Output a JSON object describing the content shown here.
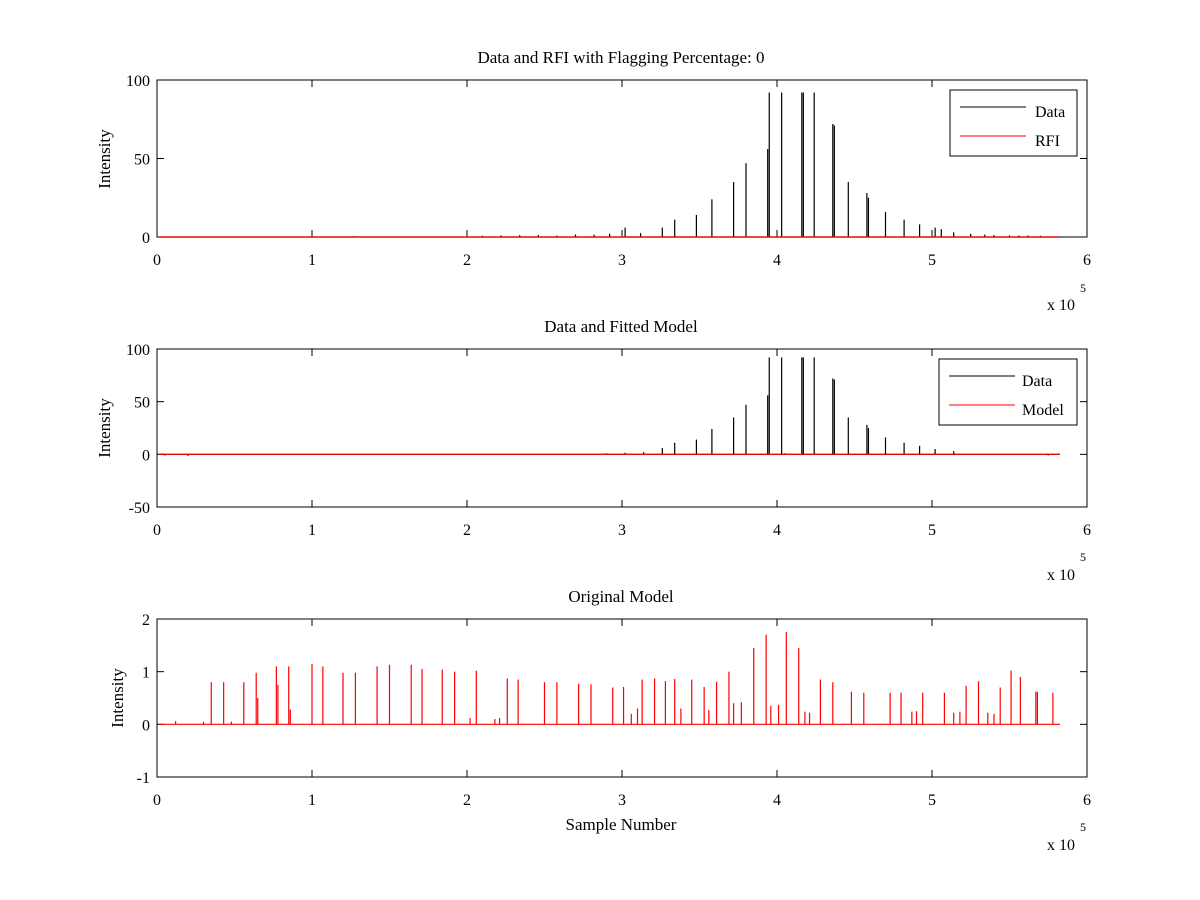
{
  "chart_data": [
    {
      "type": "line",
      "title": "Data and RFI with Flagging Percentage: 0",
      "xlabel": "",
      "ylabel": "Intensity",
      "xlim": [
        0,
        600000
      ],
      "ylim": [
        0,
        100
      ],
      "xticks": [
        0,
        1,
        2,
        3,
        4,
        5,
        6
      ],
      "yticks": [
        0,
        50,
        100
      ],
      "x_multiplier": "x 10",
      "x_multiplier_exp": "5",
      "grid": false,
      "legend": "top-right",
      "series": [
        {
          "name": "Data",
          "color": "#000000",
          "peaks": [
            [
              12000,
              0.4
            ],
            [
              40000,
              0.3
            ],
            [
              82000,
              0.4
            ],
            [
              127000,
              0.6
            ],
            [
              180000,
              0.3
            ],
            [
              210000,
              0.8
            ],
            [
              222000,
              1.0
            ],
            [
              234000,
              1.2
            ],
            [
              246000,
              1.3
            ],
            [
              258000,
              0.9
            ],
            [
              270000,
              1.6
            ],
            [
              282000,
              1.5
            ],
            [
              292000,
              2.0
            ],
            [
              302000,
              6.0
            ],
            [
              312000,
              2.5
            ],
            [
              326000,
              6.0
            ],
            [
              334000,
              11.0
            ],
            [
              348000,
              14.0
            ],
            [
              358000,
              24.0
            ],
            [
              372000,
              35.0
            ],
            [
              380000,
              47.0
            ],
            [
              394000,
              56.0
            ],
            [
              395000,
              92.0
            ],
            [
              403000,
              92.0
            ],
            [
              416000,
              92.0
            ],
            [
              417000,
              92.0
            ],
            [
              424000,
              92.0
            ],
            [
              436000,
              72.0
            ],
            [
              437000,
              71.0
            ],
            [
              446000,
              35.0
            ],
            [
              458000,
              28.0
            ],
            [
              459000,
              25.0
            ],
            [
              470000,
              16.0
            ],
            [
              482000,
              11.0
            ],
            [
              492000,
              8.0
            ],
            [
              502000,
              6.0
            ],
            [
              506000,
              5.0
            ],
            [
              514000,
              3.0
            ],
            [
              525000,
              2.0
            ],
            [
              534000,
              1.5
            ],
            [
              540000,
              1.2
            ],
            [
              550000,
              1.0
            ],
            [
              556000,
              0.9
            ],
            [
              562000,
              1.0
            ],
            [
              570000,
              0.8
            ]
          ]
        },
        {
          "name": "RFI",
          "color": "#ff0000",
          "peaks": []
        }
      ]
    },
    {
      "type": "line",
      "title": "Data and Fitted Model",
      "xlabel": "",
      "ylabel": "Intensity",
      "xlim": [
        0,
        600000
      ],
      "ylim": [
        -50,
        100
      ],
      "xticks": [
        0,
        1,
        2,
        3,
        4,
        5,
        6
      ],
      "yticks": [
        -50,
        0,
        50,
        100
      ],
      "x_multiplier": "x 10",
      "x_multiplier_exp": "5",
      "grid": false,
      "legend": "top-right",
      "series": [
        {
          "name": "Data",
          "color": "#000000",
          "peaks": [
            [
              5000,
              -1.0
            ],
            [
              20000,
              -1.5
            ],
            [
              290000,
              1.0
            ],
            [
              302000,
              1.5
            ],
            [
              314000,
              2.0
            ],
            [
              326000,
              6.0
            ],
            [
              334000,
              11.0
            ],
            [
              348000,
              14.0
            ],
            [
              358000,
              24.0
            ],
            [
              372000,
              35.0
            ],
            [
              380000,
              47.0
            ],
            [
              394000,
              56.0
            ],
            [
              395000,
              92.0
            ],
            [
              403000,
              92.0
            ],
            [
              416000,
              92.0
            ],
            [
              417000,
              92.0
            ],
            [
              424000,
              92.0
            ],
            [
              436000,
              72.0
            ],
            [
              437000,
              71.0
            ],
            [
              446000,
              35.0
            ],
            [
              458000,
              28.0
            ],
            [
              459000,
              25.0
            ],
            [
              470000,
              16.0
            ],
            [
              482000,
              11.0
            ],
            [
              492000,
              8.0
            ],
            [
              502000,
              5.0
            ],
            [
              514000,
              3.0
            ],
            [
              575000,
              -1.0
            ]
          ]
        },
        {
          "name": "Model",
          "color": "#ff0000",
          "peaks": [
            [
              395000,
              1.2
            ],
            [
              405000,
              1.2
            ]
          ]
        }
      ]
    },
    {
      "type": "line",
      "title": "Original Model",
      "xlabel": "Sample Number",
      "ylabel": "Intensity",
      "xlim": [
        0,
        600000
      ],
      "ylim": [
        -1,
        2
      ],
      "xticks": [
        0,
        1,
        2,
        3,
        4,
        5,
        6
      ],
      "yticks": [
        -1,
        0,
        1,
        2
      ],
      "x_multiplier": "x 10",
      "x_multiplier_exp": "5",
      "grid": false,
      "legend": "none",
      "series": [
        {
          "name": "",
          "color": "#ff0000",
          "peaks": [
            [
              12000,
              0.06
            ],
            [
              30000,
              0.05
            ],
            [
              35000,
              0.8
            ],
            [
              43000,
              0.8
            ],
            [
              48000,
              0.05
            ],
            [
              56000,
              0.8
            ],
            [
              64000,
              0.98
            ],
            [
              65000,
              0.5
            ],
            [
              77000,
              1.1
            ],
            [
              78000,
              0.75
            ],
            [
              85000,
              1.1
            ],
            [
              86000,
              0.28
            ],
            [
              100000,
              1.15
            ],
            [
              107000,
              1.1
            ],
            [
              120000,
              0.98
            ],
            [
              128000,
              0.98
            ],
            [
              142000,
              1.1
            ],
            [
              150000,
              1.13
            ],
            [
              164000,
              1.13
            ],
            [
              171000,
              1.05
            ],
            [
              184000,
              1.04
            ],
            [
              192000,
              1.0
            ],
            [
              202000,
              0.12
            ],
            [
              206000,
              1.02
            ],
            [
              218000,
              0.1
            ],
            [
              221000,
              0.12
            ],
            [
              226000,
              0.87
            ],
            [
              233000,
              0.85
            ],
            [
              250000,
              0.8
            ],
            [
              258000,
              0.8
            ],
            [
              272000,
              0.77
            ],
            [
              280000,
              0.76
            ],
            [
              294000,
              0.7
            ],
            [
              301000,
              0.71
            ],
            [
              306000,
              0.2
            ],
            [
              310000,
              0.3
            ],
            [
              313000,
              0.85
            ],
            [
              321000,
              0.87
            ],
            [
              328000,
              0.82
            ],
            [
              334000,
              0.86
            ],
            [
              338000,
              0.3
            ],
            [
              345000,
              0.85
            ],
            [
              353000,
              0.71
            ],
            [
              356000,
              0.27
            ],
            [
              361000,
              0.81
            ],
            [
              369000,
              1.0
            ],
            [
              372000,
              0.4
            ],
            [
              377000,
              0.42
            ],
            [
              385000,
              1.45
            ],
            [
              393000,
              1.7
            ],
            [
              396000,
              0.35
            ],
            [
              401000,
              0.37
            ],
            [
              406000,
              1.75
            ],
            [
              414000,
              1.45
            ],
            [
              418000,
              0.24
            ],
            [
              421000,
              0.22
            ],
            [
              428000,
              0.85
            ],
            [
              436000,
              0.8
            ],
            [
              448000,
              0.62
            ],
            [
              456000,
              0.6
            ],
            [
              473000,
              0.6
            ],
            [
              480000,
              0.6
            ],
            [
              487000,
              0.24
            ],
            [
              490000,
              0.25
            ],
            [
              494000,
              0.6
            ],
            [
              508000,
              0.6
            ],
            [
              514000,
              0.22
            ],
            [
              518000,
              0.24
            ],
            [
              522000,
              0.73
            ],
            [
              530000,
              0.82
            ],
            [
              536000,
              0.22
            ],
            [
              540000,
              0.2
            ],
            [
              544000,
              0.7
            ],
            [
              551000,
              1.02
            ],
            [
              557000,
              0.9
            ],
            [
              567000,
              0.62
            ],
            [
              568000,
              0.62
            ],
            [
              578000,
              0.6
            ]
          ]
        }
      ]
    }
  ]
}
